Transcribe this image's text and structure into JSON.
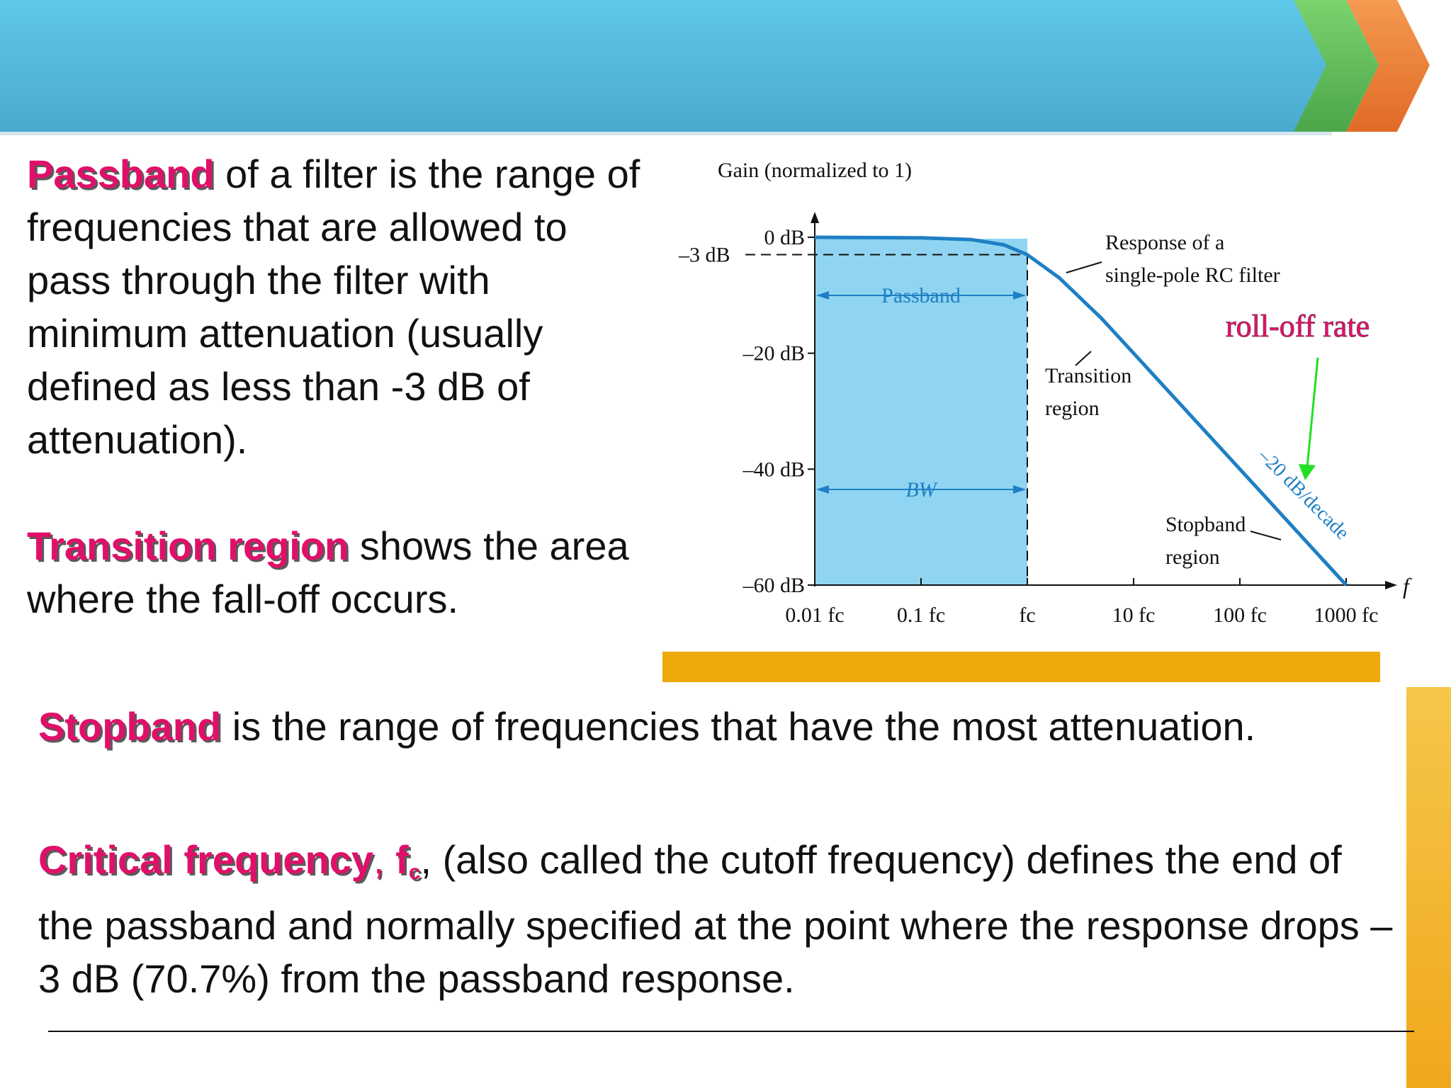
{
  "colors": {
    "banner_main": "#55bfe0",
    "banner_green": "#5cc060",
    "banner_orange": "#ef7f36",
    "keyword": "#e0106a",
    "curve": "#1f7fc4",
    "passband_fill": "#8fd5f2",
    "figure_bar": "#eeaa0a",
    "annotation_arrow": "#22e022"
  },
  "passband_para": {
    "term": "Passband",
    "text": " of a filter is the range of frequencies that are allowed to pass through the filter with minimum attenuation (usually defined as less than -3 dB of attenuation)."
  },
  "transition_para": {
    "term": "Transition region",
    "text": " shows the area where the fall-off occurs."
  },
  "stopband_para": {
    "term": "Stopband",
    "text": " is the range of frequencies that have the most attenuation."
  },
  "critical_para": {
    "term": "Critical frequency",
    "comma": ", ",
    "symbol": "f",
    "subscript": "c",
    "text": ", (also called the cutoff frequency) defines the end of the passband and normally specified at the point where the response drops – 3 dB (70.7%) from the passband response."
  },
  "figure": {
    "y_axis_title": "Gain (normalized to 1)",
    "x_axis_symbol": "f",
    "minus3db_label": "–3 dB",
    "passband_label": "Passband",
    "bw_label": "BW",
    "transition_label": [
      "Transition",
      "region"
    ],
    "response_label": [
      "Response of a",
      "single-pole RC filter"
    ],
    "stopband_label": [
      "Stopband",
      "region"
    ],
    "slope_label": "–20 dB/decade",
    "rolloff_label": "roll-off rate"
  },
  "chart_data": {
    "type": "line",
    "title": "",
    "ylabel": "Gain (normalized to 1)",
    "xlabel": "f",
    "x_scale": "log",
    "x_ticks": [
      "0.01 fc",
      "0.1 fc",
      "fc",
      "10 fc",
      "100 fc",
      "1000 fc"
    ],
    "y_ticks": [
      "0 dB",
      "–20 dB",
      "–40 dB",
      "–60 dB"
    ],
    "ylim": [
      -60,
      0
    ],
    "series": [
      {
        "name": "Response of a single-pole RC filter",
        "x_fc": [
          0.01,
          0.1,
          0.3,
          0.6,
          1,
          2,
          5,
          10,
          100,
          1000
        ],
        "y_db": [
          0,
          -0.1,
          -0.4,
          -1.3,
          -3,
          -7,
          -14,
          -20,
          -40,
          -60
        ]
      }
    ],
    "annotations": [
      "–3 dB",
      "Passband",
      "BW",
      "Transition region",
      "Stopband region",
      "–20 dB/decade",
      "roll-off rate"
    ]
  }
}
